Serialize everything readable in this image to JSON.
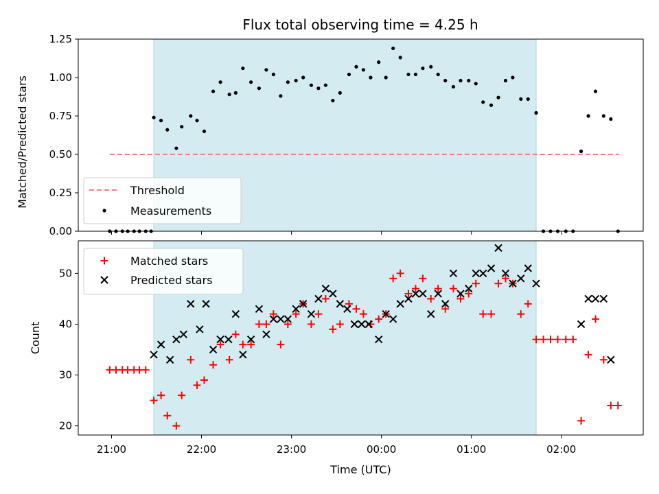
{
  "chart_data": {
    "type": "scatter",
    "title": "Flux total observing time = 4.25 h",
    "xlabel": "Time (UTC)",
    "x_ticks": [
      "21:00",
      "22:00",
      "23:00",
      "00:00",
      "01:00",
      "02:00"
    ],
    "x_tick_hours": [
      21,
      22,
      23,
      24,
      25,
      26
    ],
    "xlim_hours": [
      20.63,
      26.91
    ],
    "shaded_span_hours": [
      21.47,
      25.72
    ],
    "colors": {
      "shade": "#d4ebf1",
      "shade_edge": "#a9d6e2",
      "threshold": "#f08080",
      "measurement": "#000000",
      "matched": "#ff0000",
      "predicted": "#000000"
    },
    "top_panel": {
      "ylabel": "Matched/Predicted stars",
      "ylim": [
        0,
        1.25
      ],
      "y_ticks": [
        "0.00",
        "0.25",
        "0.50",
        "0.75",
        "1.00",
        "1.25"
      ],
      "y_tick_values": [
        0,
        0.25,
        0.5,
        0.75,
        1,
        1.25
      ],
      "legend": [
        "Threshold",
        "Measurements"
      ],
      "threshold": {
        "name": "Threshold",
        "value": 0.5,
        "x_range_hours": [
          20.98,
          26.64
        ]
      },
      "measurements": {
        "name": "Measurements",
        "x_hours": [
          20.98,
          21.05,
          21.12,
          21.18,
          21.25,
          21.31,
          21.38,
          21.44,
          21.47,
          21.55,
          21.62,
          21.72,
          21.78,
          21.88,
          21.95,
          22.03,
          22.13,
          22.21,
          22.31,
          22.38,
          22.46,
          22.55,
          22.64,
          22.72,
          22.8,
          22.88,
          22.96,
          23.05,
          23.13,
          23.22,
          23.3,
          23.38,
          23.46,
          23.54,
          23.64,
          23.72,
          23.8,
          23.88,
          23.97,
          24.05,
          24.13,
          24.21,
          24.3,
          24.38,
          24.46,
          24.55,
          24.63,
          24.71,
          24.8,
          24.88,
          24.97,
          25.05,
          25.13,
          25.22,
          25.3,
          25.38,
          25.46,
          25.55,
          25.63,
          25.72,
          25.8,
          25.88,
          25.96,
          26.05,
          26.13,
          26.22,
          26.3,
          26.38,
          26.47,
          26.55,
          26.63
        ],
        "values": [
          0,
          0,
          0,
          0,
          0,
          0,
          0,
          0,
          0.74,
          0.72,
          0.66,
          0.54,
          0.68,
          0.75,
          0.72,
          0.65,
          0.91,
          0.97,
          0.89,
          0.9,
          1.06,
          0.97,
          0.93,
          1.05,
          1.02,
          0.88,
          0.97,
          0.98,
          1.0,
          0.95,
          0.93,
          0.95,
          0.85,
          0.9,
          1.02,
          1.07,
          1.05,
          1.0,
          1.1,
          1.0,
          1.19,
          1.13,
          1.02,
          1.02,
          1.06,
          1.07,
          1.02,
          0.98,
          0.94,
          0.98,
          0.98,
          0.96,
          0.84,
          0.82,
          0.87,
          0.98,
          1.0,
          0.86,
          0.86,
          0.77,
          0,
          0,
          0,
          0,
          0,
          0.52,
          0.75,
          0.91,
          0.75,
          0.73,
          0
        ]
      }
    },
    "bottom_panel": {
      "ylabel": "Count",
      "ylim": [
        18.2,
        56.4
      ],
      "y_ticks": [
        "20",
        "30",
        "40",
        "50"
      ],
      "y_tick_values": [
        20,
        30,
        40,
        50
      ],
      "legend": [
        "Matched stars",
        "Predicted stars"
      ],
      "series": [
        {
          "name": "Matched stars",
          "marker": "plus",
          "x_hours": [
            20.98,
            21.05,
            21.12,
            21.18,
            21.25,
            21.31,
            21.38,
            21.47,
            21.55,
            21.62,
            21.72,
            21.78,
            21.88,
            21.95,
            22.03,
            22.13,
            22.21,
            22.31,
            22.38,
            22.46,
            22.55,
            22.64,
            22.72,
            22.8,
            22.88,
            22.96,
            23.05,
            23.13,
            23.22,
            23.3,
            23.38,
            23.46,
            23.54,
            23.64,
            23.72,
            23.8,
            23.88,
            23.97,
            24.05,
            24.13,
            24.21,
            24.3,
            24.38,
            24.46,
            24.55,
            24.63,
            24.71,
            24.8,
            24.88,
            24.97,
            25.05,
            25.13,
            25.22,
            25.3,
            25.38,
            25.46,
            25.55,
            25.63,
            25.72,
            25.8,
            25.88,
            25.96,
            26.05,
            26.13,
            26.22,
            26.3,
            26.38,
            26.47,
            26.55,
            26.63
          ],
          "values": [
            31,
            31,
            31,
            31,
            31,
            31,
            31,
            25,
            26,
            22,
            20,
            26,
            33,
            28,
            29,
            32,
            36,
            33,
            38,
            36,
            36,
            40,
            40,
            42,
            36,
            40,
            42,
            44,
            40,
            42,
            45,
            39,
            40,
            44,
            43,
            42,
            40,
            41,
            42,
            49,
            50,
            46,
            47,
            49,
            45,
            47,
            43,
            47,
            45,
            46,
            48,
            42,
            42,
            48,
            49,
            48,
            42,
            44,
            37,
            37,
            37,
            37,
            37,
            37,
            21,
            34,
            41,
            33,
            24,
            24
          ]
        },
        {
          "name": "Predicted stars",
          "marker": "x",
          "x_hours": [
            21.47,
            21.55,
            21.65,
            21.72,
            21.8,
            21.88,
            21.98,
            22.05,
            22.13,
            22.21,
            22.3,
            22.38,
            22.46,
            22.55,
            22.64,
            22.72,
            22.8,
            22.88,
            22.96,
            23.05,
            23.13,
            23.22,
            23.3,
            23.38,
            23.46,
            23.54,
            23.62,
            23.7,
            23.78,
            23.86,
            23.97,
            24.05,
            24.13,
            24.21,
            24.3,
            24.38,
            24.46,
            24.55,
            24.63,
            24.71,
            24.8,
            24.88,
            24.97,
            25.05,
            25.13,
            25.22,
            25.3,
            25.38,
            25.46,
            25.55,
            25.63,
            25.72,
            26.22,
            26.3,
            26.38,
            26.47,
            26.55
          ],
          "values": [
            34,
            36,
            33,
            37,
            38,
            44,
            39,
            44,
            35,
            37,
            37,
            42,
            34,
            37,
            43,
            38,
            41,
            41,
            41,
            43,
            44,
            42,
            45,
            47,
            46,
            44,
            43,
            40,
            40,
            40,
            37,
            42,
            41,
            44,
            45,
            46,
            46,
            42,
            46,
            44,
            50,
            46,
            47,
            50,
            50,
            51,
            55,
            50,
            48,
            49,
            51,
            48,
            40,
            45,
            45,
            45,
            33
          ]
        }
      ]
    }
  }
}
